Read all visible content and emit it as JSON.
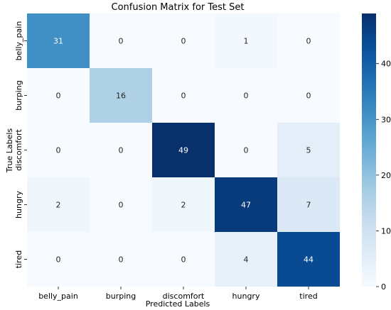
{
  "chart_data": {
    "type": "heatmap",
    "title": "Confusion Matrix for Test Set",
    "xlabel": "Predicted Labels",
    "ylabel": "True Labels",
    "x_categories": [
      "belly_pain",
      "burping",
      "discomfort",
      "hungry",
      "tired"
    ],
    "y_categories": [
      "belly_pain",
      "burping",
      "discomfort",
      "hungry",
      "tired"
    ],
    "values": [
      [
        31,
        0,
        0,
        1,
        0
      ],
      [
        0,
        16,
        0,
        0,
        0
      ],
      [
        0,
        0,
        49,
        0,
        5
      ],
      [
        2,
        0,
        2,
        47,
        7
      ],
      [
        0,
        0,
        0,
        4,
        44
      ]
    ],
    "colormap": "Blues",
    "color_range": [
      0,
      49
    ],
    "colorbar_ticks": [
      0,
      10,
      20,
      30,
      40
    ],
    "annotated": true,
    "grid": false
  }
}
